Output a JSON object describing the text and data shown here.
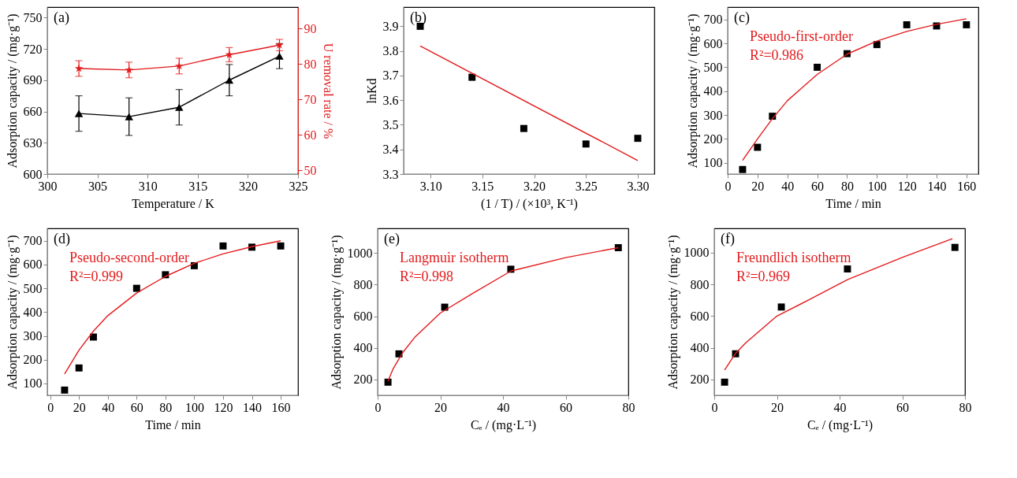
{
  "chart_data": [
    {
      "type": "line",
      "xlabel": "Temperature / K",
      "ylabel": "Adsorption capacity / (mg·g⁻¹)",
      "y2label": "U removal rate / %",
      "xlim": [
        300,
        325
      ],
      "xticks": [
        300,
        305,
        310,
        315,
        320,
        325
      ],
      "ylim": [
        600,
        760
      ],
      "yticks": [
        600,
        630,
        660,
        690,
        720,
        750
      ],
      "y2lim": [
        49,
        96
      ],
      "y2ticks": [
        50,
        60,
        70,
        80,
        90
      ],
      "grid": false,
      "annotations": [
        "(a)"
      ],
      "series": [
        {
          "x": [
            303.15,
            308.15,
            313.15,
            318.15,
            323.15
          ],
          "values": [
            658,
            655,
            664,
            690,
            713
          ],
          "errors": [
            17,
            18,
            17,
            15,
            12
          ],
          "color": "#000000",
          "marker": "triangle"
        },
        {
          "axis": "y2",
          "x": [
            303.15,
            308.15,
            313.15,
            318.15,
            323.15
          ],
          "values": [
            78.7,
            78.3,
            79.4,
            82.6,
            85.3
          ],
          "errors": [
            2.2,
            2.2,
            2.2,
            2.0,
            1.6
          ],
          "color": "#e31a1c",
          "marker": "star"
        }
      ]
    },
    {
      "type": "scatter",
      "xlabel": "(1 / T) / (×10³, K⁻¹)",
      "ylabel": "lnKd",
      "xlim": [
        3.074,
        3.316
      ],
      "xticks": [
        {
          "value": 3.1,
          "label": "3.10"
        },
        3.15,
        {
          "value": 3.2,
          "label": "3.20"
        },
        3.25,
        {
          "value": 3.3,
          "label": "3.30"
        }
      ],
      "ylim": [
        3.3,
        3.978
      ],
      "yticks": [
        3.3,
        3.4,
        3.5,
        3.6,
        3.7,
        3.8,
        3.9
      ],
      "grid": false,
      "annotations": [
        "(b)"
      ],
      "series": [
        {
          "x": [
            3.09,
            3.14,
            3.19,
            3.25,
            3.3
          ],
          "values": [
            3.9,
            3.693,
            3.485,
            3.422,
            3.445
          ],
          "color": "#000000",
          "marker": "square"
        },
        {
          "type": "line",
          "x": [
            3.09,
            3.3
          ],
          "values": [
            3.82,
            3.355
          ],
          "color": "#e31a1c",
          "marker": "none"
        }
      ]
    },
    {
      "type": "scatter",
      "xlabel": "Time / min",
      "ylabel": "Adsorption capacity / (mg·g⁻¹)",
      "xlim": [
        0,
        168
      ],
      "xticks": [
        0,
        20,
        40,
        60,
        80,
        100,
        120,
        140,
        160
      ],
      "ylim": [
        53,
        752
      ],
      "yticks": [
        100,
        200,
        300,
        400,
        500,
        600,
        700
      ],
      "grid": false,
      "annotations": [
        "(c)",
        "Pseudo-first-order",
        "R²=0.986"
      ],
      "series": [
        {
          "x": [
            10,
            20,
            30,
            60,
            80,
            100,
            120,
            140,
            160
          ],
          "values": [
            72,
            165,
            295,
            500,
            557,
            595,
            678,
            673,
            678
          ],
          "color": "#000000",
          "marker": "square"
        },
        {
          "type": "line",
          "x": [
            10,
            20,
            30,
            40,
            60,
            80,
            100,
            120,
            140,
            160
          ],
          "values": [
            110,
            200,
            285,
            360,
            470,
            555,
            610,
            650,
            680,
            703
          ],
          "color": "#e31a1c",
          "marker": "none"
        }
      ]
    },
    {
      "type": "scatter",
      "xlabel": "Time / min",
      "ylabel": "Adsorption capacity / (mg·g⁻¹)",
      "xlim": [
        -2,
        172
      ],
      "xticks": [
        0,
        20,
        40,
        60,
        80,
        100,
        120,
        140,
        160
      ],
      "ylim": [
        50,
        752
      ],
      "yticks": [
        100,
        200,
        300,
        400,
        500,
        600,
        700
      ],
      "grid": false,
      "annotations": [
        "(d)",
        "Pseudo-second-order",
        "R²=0.999"
      ],
      "series": [
        {
          "x": [
            10,
            20,
            30,
            60,
            80,
            100,
            120,
            140,
            160
          ],
          "values": [
            72,
            165,
            295,
            500,
            557,
            595,
            678,
            673,
            678
          ],
          "color": "#000000",
          "marker": "square"
        },
        {
          "type": "line",
          "x": [
            10,
            20,
            30,
            40,
            60,
            80,
            100,
            120,
            140,
            160
          ],
          "values": [
            140,
            240,
            320,
            385,
            480,
            550,
            605,
            645,
            675,
            700
          ],
          "color": "#e31a1c",
          "marker": "none"
        }
      ]
    },
    {
      "type": "scatter",
      "xlabel": "Cₑ / (mg·L⁻¹)",
      "ylabel": "Adsorption capacity / (mg·g⁻¹)",
      "xlim": [
        0,
        80
      ],
      "xticks": [
        0,
        20,
        40,
        60,
        80
      ],
      "ylim": [
        100,
        1155
      ],
      "yticks": [
        200,
        400,
        600,
        800,
        1000
      ],
      "grid": false,
      "annotations": [
        "(e)",
        "Langmuir isotherm",
        "R²=0.998"
      ],
      "series": [
        {
          "x": [
            3.3,
            6.8,
            21.4,
            42.5,
            76.8
          ],
          "values": [
            183,
            362,
            657,
            897,
            1033
          ],
          "color": "#000000",
          "marker": "square"
        },
        {
          "type": "line",
          "x": [
            3.3,
            5,
            8,
            12,
            20,
            30,
            42.5,
            60,
            76.8
          ],
          "values": [
            190,
            270,
            370,
            470,
            620,
            740,
            885,
            970,
            1033
          ],
          "color": "#e31a1c",
          "marker": "none"
        }
      ]
    },
    {
      "type": "scatter",
      "xlabel": "Cₑ / (mg·L⁻¹)",
      "ylabel": "Adsorption capacity / (mg·g⁻¹)",
      "xlim": [
        0,
        80
      ],
      "xticks": [
        0,
        20,
        40,
        60,
        80
      ],
      "ylim": [
        100,
        1153
      ],
      "yticks": [
        200,
        400,
        600,
        800,
        1000
      ],
      "grid": false,
      "annotations": [
        "(f)",
        "Freundlich isotherm",
        "R²=0.969"
      ],
      "series": [
        {
          "x": [
            3.3,
            6.8,
            21.4,
            42.5,
            76.8
          ],
          "values": [
            183,
            362,
            657,
            897,
            1033
          ],
          "color": "#000000",
          "marker": "square"
        },
        {
          "type": "line",
          "x": [
            3.3,
            6.8,
            10,
            20,
            30,
            42.5,
            60,
            76
          ],
          "values": [
            260,
            365,
            430,
            600,
            700,
            830,
            970,
            1088
          ],
          "color": "#e31a1c",
          "marker": "none"
        }
      ]
    }
  ]
}
